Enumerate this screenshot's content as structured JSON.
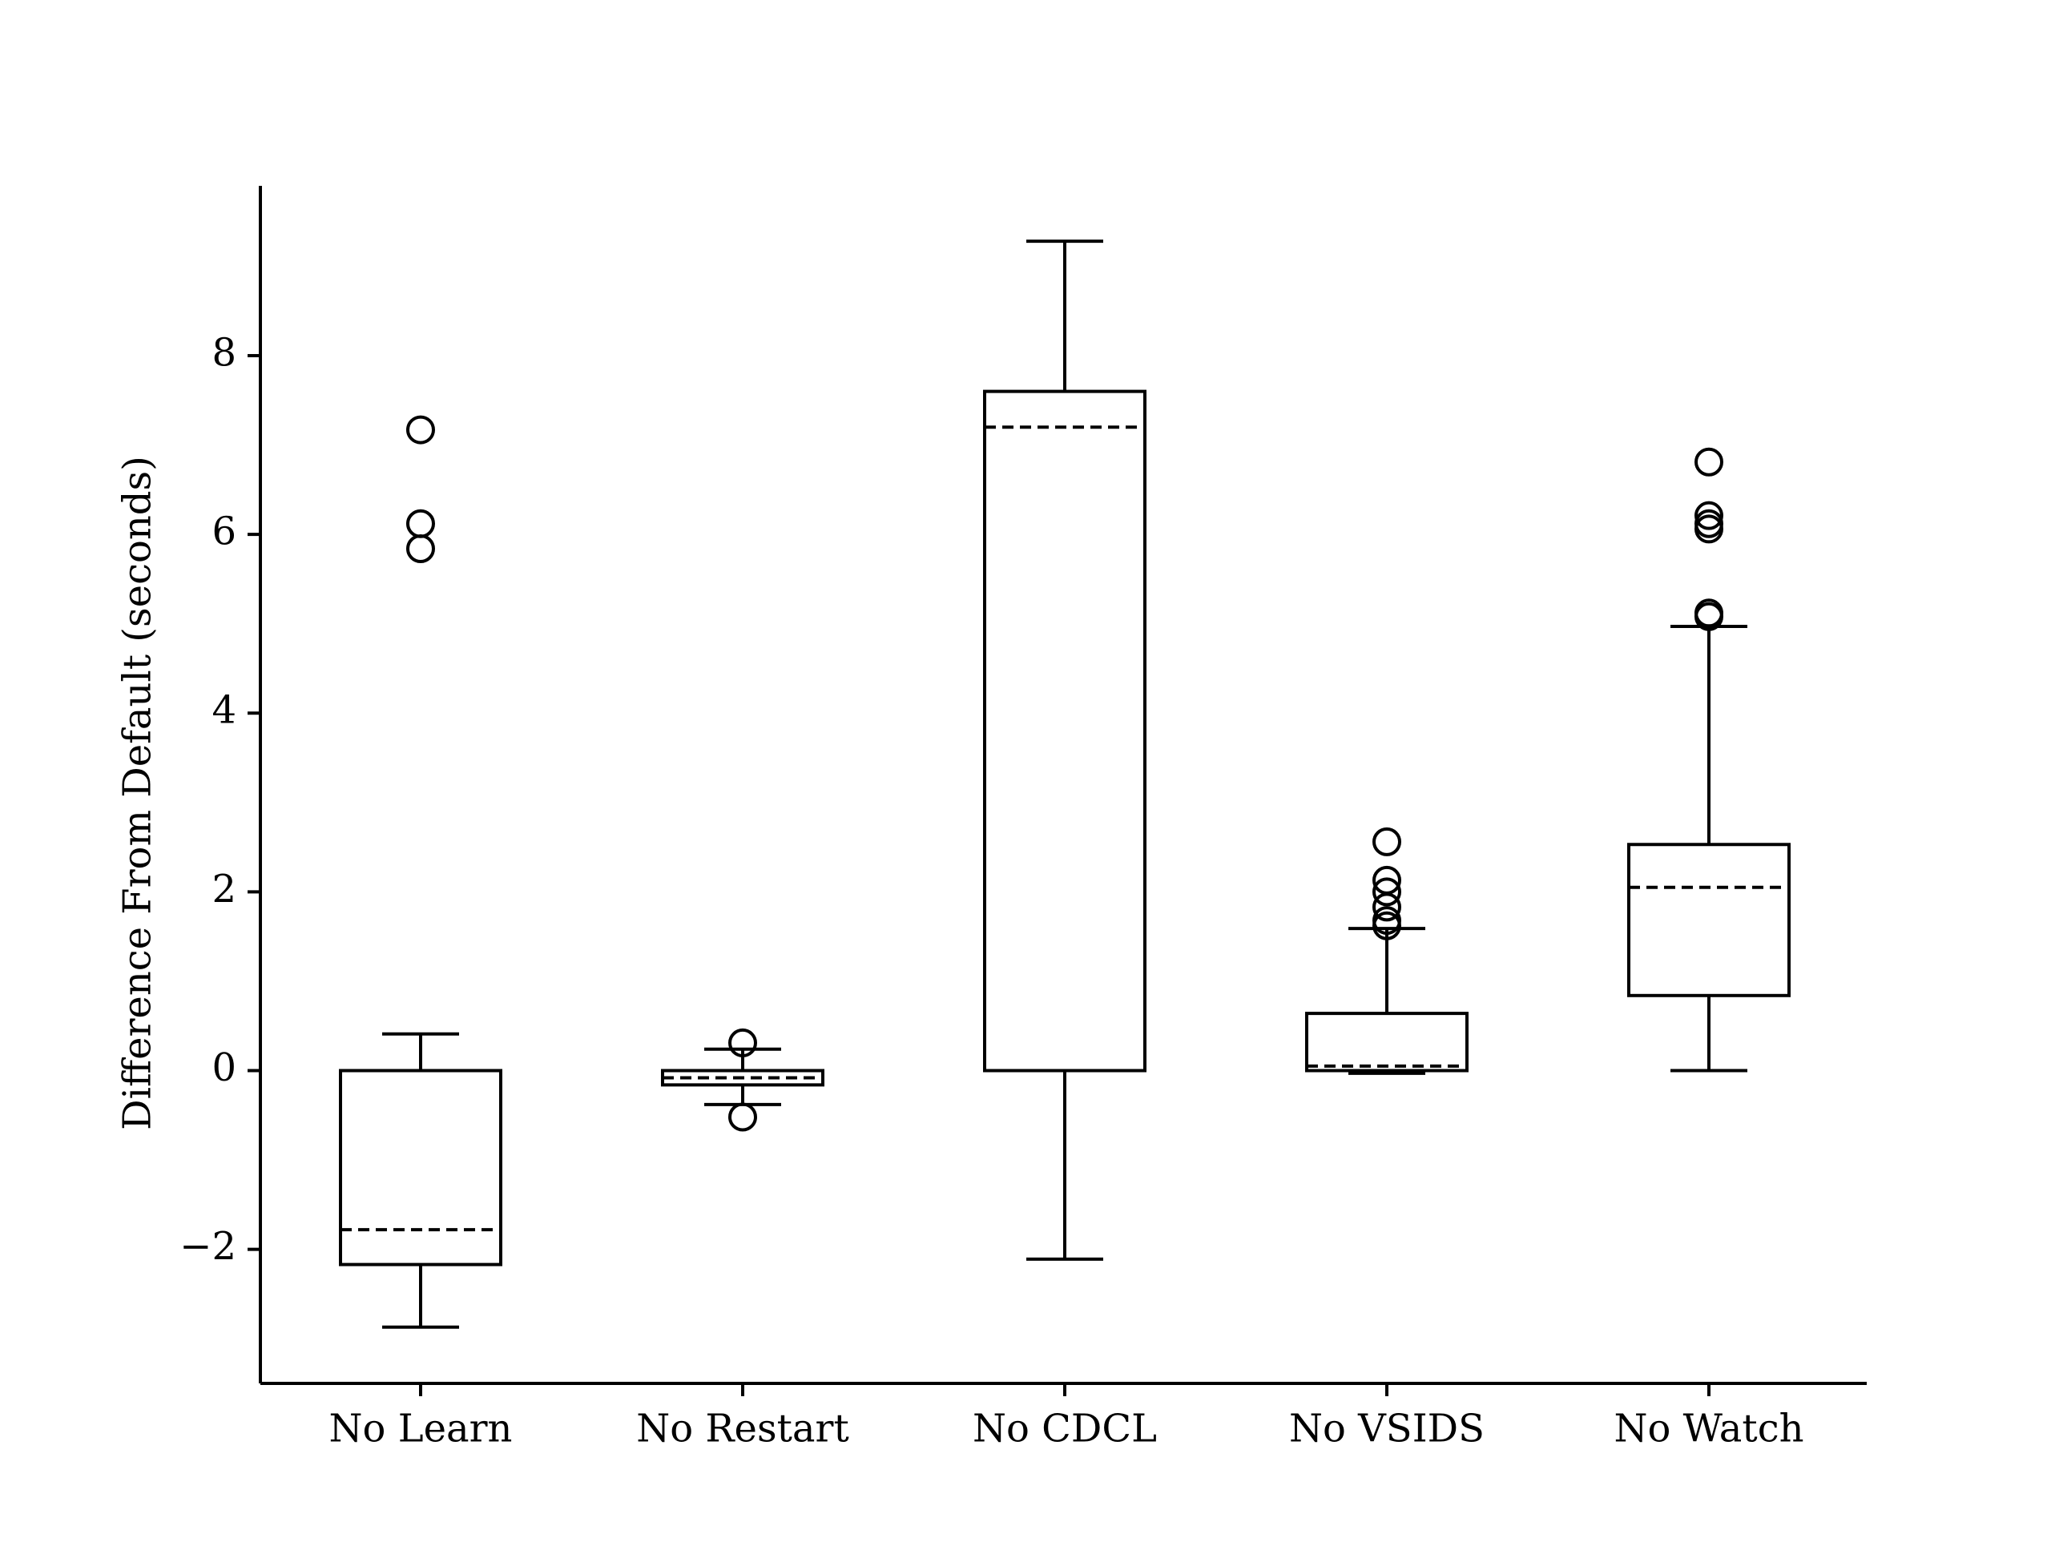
{
  "chart_data": {
    "type": "box",
    "title": "",
    "xlabel": "",
    "ylabel": "Difference From Default (seconds)",
    "ylim": [
      -3.5,
      9.9
    ],
    "yticks": [
      -2,
      0,
      2,
      4,
      6,
      8
    ],
    "ytick_labels": [
      "−2",
      "0",
      "2",
      "4",
      "6",
      "8"
    ],
    "categories": [
      "No Learn",
      "No Restart",
      "No CDCL",
      "No VSIDS",
      "No Watch"
    ],
    "boxes": [
      {
        "category": "No Learn",
        "whisker_low": -2.87,
        "q1": -2.17,
        "median": -1.78,
        "q3": 0.0,
        "whisker_high": 0.41,
        "outliers": [
          7.17,
          6.12,
          5.84
        ]
      },
      {
        "category": "No Restart",
        "whisker_low": -0.38,
        "q1": -0.16,
        "median": -0.08,
        "q3": 0.0,
        "whisker_high": 0.24,
        "outliers": [
          0.31,
          -0.52
        ]
      },
      {
        "category": "No CDCL",
        "whisker_low": -2.11,
        "q1": 0.0,
        "median": 7.2,
        "q3": 7.6,
        "whisker_high": 9.28,
        "outliers": []
      },
      {
        "category": "No VSIDS",
        "whisker_low": -0.03,
        "q1": 0.0,
        "median": 0.05,
        "q3": 0.64,
        "whisker_high": 1.59,
        "outliers": [
          2.56,
          2.13,
          2.0,
          1.83,
          1.68,
          1.62
        ]
      },
      {
        "category": "No Watch",
        "whisker_low": 0.0,
        "q1": 0.84,
        "median": 2.05,
        "q3": 2.53,
        "whisker_high": 4.97,
        "outliers": [
          6.81,
          6.21,
          6.12,
          6.06,
          5.12,
          5.08
        ]
      }
    ],
    "median_style": "dashed",
    "grid": false,
    "legend": "none",
    "colors": {
      "stroke": "#000000",
      "background": "#ffffff"
    }
  }
}
